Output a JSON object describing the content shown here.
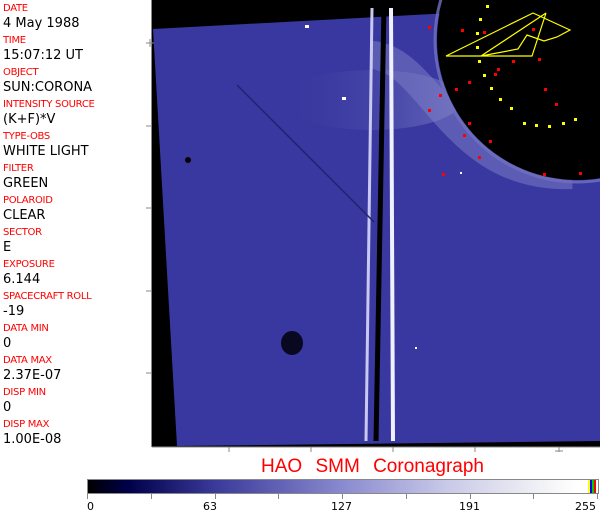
{
  "info_panel": [
    {
      "label": "DATE",
      "value": "4 May 1988"
    },
    {
      "label": "TIME",
      "value": "15:07:12 UT"
    },
    {
      "label": "OBJECT",
      "value": "SUN:CORONA"
    },
    {
      "label": "INTENSITY SOURCE",
      "value": "(K+F)*V"
    },
    {
      "label": "TYPE-OBS",
      "value": "WHITE LIGHT"
    },
    {
      "label": "FILTER",
      "value": "GREEN"
    },
    {
      "label": "POLAROID",
      "value": "CLEAR"
    },
    {
      "label": "SECTOR",
      "value": "E"
    },
    {
      "label": "EXPOSURE",
      "value": "6.144"
    },
    {
      "label": "SPACECRAFT ROLL",
      "value": "-19"
    },
    {
      "label": "DATA MIN",
      "value": "0"
    },
    {
      "label": "DATA MAX",
      "value": "2.37E-07"
    },
    {
      "label": "DISP MIN",
      "value": "0"
    },
    {
      "label": "DISP MAX",
      "value": "1.00E-08"
    }
  ],
  "title": "HAO  SMM Coronagraph",
  "colorbar": {
    "ticks": [
      "0",
      "63",
      "127",
      "191",
      "255"
    ],
    "min": 0,
    "max": 255,
    "colors": {
      "low": "#000000",
      "mid": "#8a8ad0",
      "high": "#ffffff"
    }
  },
  "colors": {
    "label": "#ff0000",
    "image_blue": "#3c3ca0",
    "overlay_red": "#ff0000",
    "overlay_yellow": "#ffff00"
  }
}
